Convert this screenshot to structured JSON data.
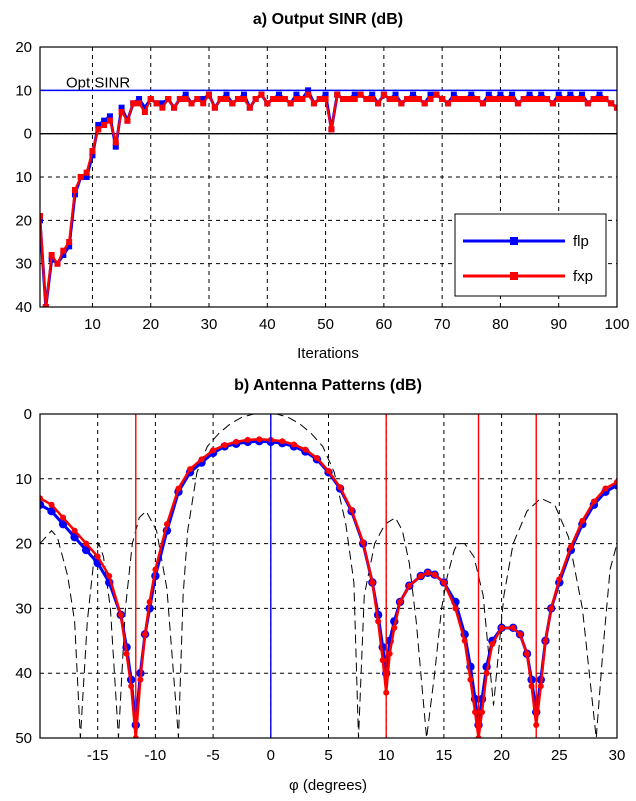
{
  "chart_data": [
    {
      "type": "line",
      "title": "a) Output SINR (dB)",
      "xlabel": "Iterations",
      "ylabel": "",
      "xlim": [
        1,
        100
      ],
      "ylim": [
        -40,
        20
      ],
      "x_ticks": [
        10,
        20,
        30,
        40,
        50,
        60,
        70,
        80,
        90,
        100
      ],
      "y_ticks": [
        20,
        10,
        0,
        -10,
        -20,
        -30,
        -40
      ],
      "y_tick_labels": [
        "20",
        "10",
        "0",
        "10",
        "20",
        "30",
        "40"
      ],
      "grid": true,
      "legend_position": "lower-right",
      "reference_line": {
        "label": "Opt SINR",
        "y": 10,
        "color": "#0000ff"
      },
      "zero_line": {
        "y": 0,
        "color": "#000000"
      },
      "series": [
        {
          "name": "flp",
          "color": "#0000ff",
          "marker": "square",
          "x": [
            1,
            2,
            3,
            4,
            5,
            6,
            7,
            8,
            9,
            10,
            11,
            12,
            13,
            14,
            15,
            16,
            17,
            18,
            19,
            20,
            21,
            22,
            23,
            24,
            25,
            26,
            27,
            28,
            29,
            30,
            31,
            32,
            33,
            34,
            35,
            36,
            37,
            38,
            39,
            40,
            41,
            42,
            43,
            44,
            45,
            46,
            47,
            48,
            49,
            50,
            51,
            52,
            53,
            54,
            55,
            56,
            57,
            58,
            59,
            60,
            61,
            62,
            63,
            64,
            65,
            66,
            67,
            68,
            69,
            70,
            71,
            72,
            73,
            74,
            75,
            76,
            77,
            78,
            79,
            80,
            81,
            82,
            83,
            84,
            85,
            86,
            87,
            88,
            89,
            90,
            91,
            92,
            93,
            94,
            95,
            96,
            97,
            98,
            99,
            100
          ],
          "values": [
            -20,
            -40,
            -29,
            -30,
            -28,
            -26,
            -14,
            -10,
            -10,
            -5,
            2,
            3,
            4,
            -3,
            6,
            3,
            7,
            8,
            6,
            8,
            7,
            7,
            8,
            6,
            8,
            9,
            7,
            8,
            8,
            9,
            6,
            8,
            9,
            7,
            8,
            9,
            6,
            8,
            9,
            7,
            8,
            9,
            8,
            7,
            9,
            8,
            10,
            7,
            8,
            9,
            1,
            9,
            8,
            8,
            9,
            9,
            8,
            9,
            7,
            9,
            8,
            9,
            7,
            8,
            9,
            8,
            7,
            9,
            9,
            8,
            7,
            9,
            8,
            8,
            9,
            8,
            7,
            9,
            8,
            9,
            8,
            9,
            7,
            8,
            9,
            8,
            9,
            8,
            7,
            9,
            8,
            9,
            8,
            9,
            7,
            8,
            9,
            8,
            7,
            6
          ]
        },
        {
          "name": "fxp",
          "color": "#ff0000",
          "marker": "square",
          "x": [
            1,
            2,
            3,
            4,
            5,
            6,
            7,
            8,
            9,
            10,
            11,
            12,
            13,
            14,
            15,
            16,
            17,
            18,
            19,
            20,
            21,
            22,
            23,
            24,
            25,
            26,
            27,
            28,
            29,
            30,
            31,
            32,
            33,
            34,
            35,
            36,
            37,
            38,
            39,
            40,
            41,
            42,
            43,
            44,
            45,
            46,
            47,
            48,
            49,
            50,
            51,
            52,
            53,
            54,
            55,
            56,
            57,
            58,
            59,
            60,
            61,
            62,
            63,
            64,
            65,
            66,
            67,
            68,
            69,
            70,
            71,
            72,
            73,
            74,
            75,
            76,
            77,
            78,
            79,
            80,
            81,
            82,
            83,
            84,
            85,
            86,
            87,
            88,
            89,
            90,
            91,
            92,
            93,
            94,
            95,
            96,
            97,
            98,
            99,
            100
          ],
          "values": [
            -19,
            -40,
            -28,
            -30,
            -27,
            -25,
            -13,
            -10,
            -9,
            -4,
            1,
            2,
            3,
            -2,
            5,
            3,
            7,
            7,
            5,
            8,
            7,
            6,
            8,
            6,
            8,
            8,
            7,
            8,
            7,
            9,
            6,
            8,
            8,
            7,
            8,
            8,
            6,
            8,
            9,
            7,
            8,
            8,
            8,
            7,
            8,
            8,
            9,
            7,
            8,
            8,
            1,
            9,
            8,
            8,
            8,
            9,
            8,
            8,
            7,
            9,
            8,
            8,
            7,
            8,
            8,
            8,
            7,
            8,
            9,
            8,
            7,
            8,
            8,
            8,
            8,
            8,
            7,
            8,
            8,
            8,
            8,
            8,
            7,
            8,
            8,
            8,
            8,
            8,
            7,
            8,
            8,
            8,
            8,
            8,
            7,
            8,
            8,
            8,
            7,
            6
          ]
        }
      ]
    },
    {
      "type": "line",
      "title": "b) Antenna Patterns (dB)",
      "xlabel": "φ (degrees)",
      "ylabel": "",
      "xlim": [
        -20,
        30
      ],
      "ylim": [
        -50,
        0
      ],
      "x_ticks": [
        -15,
        -10,
        -5,
        0,
        5,
        10,
        15,
        20,
        25,
        30
      ],
      "y_ticks": [
        0,
        -10,
        -20,
        -30,
        -40,
        -50
      ],
      "y_tick_labels": [
        "0",
        "10",
        "20",
        "30",
        "40",
        "50"
      ],
      "grid": true,
      "desired_direction": {
        "x": 0,
        "color": "#0000ff"
      },
      "interference_directions": {
        "x": [
          -11.7,
          10,
          18,
          23
        ],
        "color": "#ff0000"
      },
      "quiescent_pattern": {
        "color": "#000000",
        "style": "dashed",
        "x": [
          -20,
          -19,
          -18.5,
          -17.6,
          -17,
          -16.5,
          -15.9,
          -15.3,
          -14.9,
          -14.5,
          -13.9,
          -13.2,
          -12.6,
          -12,
          -11.4,
          -10.8,
          -9.9,
          -9,
          -8,
          -7.6,
          -7.2,
          -6.4,
          -5.5,
          -4.5,
          -3.5,
          -2.5,
          -1.5,
          -0.5,
          0,
          0.5,
          1.5,
          2.5,
          3.5,
          4.5,
          5.5,
          6.5,
          7.2,
          7.6,
          8.1,
          9,
          9.9,
          10.8,
          11.4,
          12,
          12.6,
          13.5,
          14.2,
          14.8,
          15.3,
          15.9,
          16.2,
          16.8,
          17.6,
          18.4,
          19.3,
          20.2,
          21,
          22.2,
          23.4,
          24.6,
          25.8,
          27,
          28.2,
          28.8,
          29.4,
          30
        ],
        "values": [
          -20,
          -18,
          -19,
          -25,
          -32,
          -50,
          -32,
          -22,
          -20,
          -22,
          -30,
          -50,
          -30,
          -20,
          -16,
          -15,
          -18,
          -27,
          -50,
          -28,
          -18,
          -9,
          -5,
          -3,
          -1.5,
          -0.5,
          0,
          0,
          0,
          0,
          -0.5,
          -1.5,
          -3,
          -5,
          -9,
          -17,
          -26,
          -50,
          -28,
          -20,
          -17,
          -16,
          -18,
          -23,
          -32,
          -50,
          -40,
          -30,
          -25,
          -21,
          -20,
          -20,
          -22,
          -28,
          -45,
          -28,
          -20,
          -15,
          -13,
          -14,
          -19,
          -30,
          -50,
          -36,
          -24,
          -20
        ]
      },
      "series": [
        {
          "name": "flp",
          "color": "#0000ff",
          "marker": "circle",
          "x": [
            -20,
            -19,
            -18,
            -17,
            -16,
            -15,
            -14,
            -13,
            -12.5,
            -12.1,
            -11.7,
            -11.3,
            -10.9,
            -10.5,
            -10,
            -9,
            -8,
            -7,
            -6,
            -5,
            -4,
            -3,
            -2,
            -1,
            0,
            1,
            2,
            3,
            4,
            5,
            6,
            7,
            8,
            8.8,
            9.3,
            9.7,
            10,
            10.3,
            10.7,
            11.2,
            12,
            13,
            13.6,
            14.2,
            15,
            16,
            16.8,
            17.3,
            17.7,
            18,
            18.3,
            18.7,
            19.2,
            20,
            21,
            21.6,
            22.2,
            22.6,
            23,
            23.4,
            23.8,
            24.3,
            25,
            26,
            27,
            28,
            29,
            30
          ],
          "values": [
            -14,
            -15,
            -17,
            -19,
            -21,
            -23,
            -26,
            -31,
            -36,
            -41,
            -48,
            -40,
            -34,
            -30,
            -25,
            -18,
            -12,
            -9,
            -7.5,
            -6,
            -5,
            -4.6,
            -4.3,
            -4.2,
            -4.3,
            -4.5,
            -5,
            -5.8,
            -7,
            -9,
            -11.5,
            -15,
            -20,
            -26,
            -31,
            -36,
            -40,
            -35,
            -32,
            -29,
            -26.5,
            -25,
            -24.5,
            -24.8,
            -26,
            -29,
            -34,
            -39,
            -44,
            -48,
            -44,
            -39,
            -35,
            -33,
            -33,
            -34,
            -37,
            -41,
            -46,
            -41,
            -35,
            -30,
            -26,
            -21,
            -17,
            -14,
            -12,
            -11
          ]
        },
        {
          "name": "fxp",
          "color": "#ff0000",
          "marker": "circle",
          "x": [
            -20,
            -19,
            -18,
            -17,
            -16,
            -15,
            -14,
            -13,
            -12.5,
            -12.1,
            -11.7,
            -11.3,
            -10.9,
            -10.5,
            -10,
            -9,
            -8,
            -7,
            -6,
            -5,
            -4,
            -3,
            -2,
            -1,
            0,
            1,
            2,
            3,
            4,
            5,
            6,
            7,
            8,
            8.8,
            9.3,
            9.7,
            10,
            10.3,
            10.7,
            11.2,
            12,
            13,
            13.6,
            14.2,
            15,
            16,
            16.8,
            17.3,
            17.7,
            18,
            18.3,
            18.7,
            19.2,
            20,
            21,
            21.6,
            22.2,
            22.6,
            23,
            23.4,
            23.8,
            24.3,
            25,
            26,
            27,
            28,
            29,
            30
          ],
          "values": [
            -13,
            -14,
            -16,
            -18,
            -20,
            -22,
            -25,
            -31,
            -37,
            -42,
            -50,
            -41,
            -34,
            -29,
            -24,
            -17,
            -11.5,
            -8.5,
            -7,
            -5.6,
            -4.8,
            -4.3,
            -4,
            -3.9,
            -4,
            -4.2,
            -4.7,
            -5.5,
            -6.8,
            -8.8,
            -11.3,
            -14.8,
            -19.8,
            -26,
            -32,
            -38,
            -43,
            -37,
            -33,
            -29,
            -26.5,
            -25,
            -24.5,
            -24.8,
            -26,
            -30,
            -35,
            -41,
            -46,
            -50,
            -46,
            -40,
            -35.5,
            -33,
            -33,
            -34,
            -37,
            -42,
            -48,
            -42,
            -35,
            -30,
            -25.5,
            -20.5,
            -16.5,
            -13.5,
            -11.5,
            -10.5
          ]
        }
      ]
    }
  ]
}
